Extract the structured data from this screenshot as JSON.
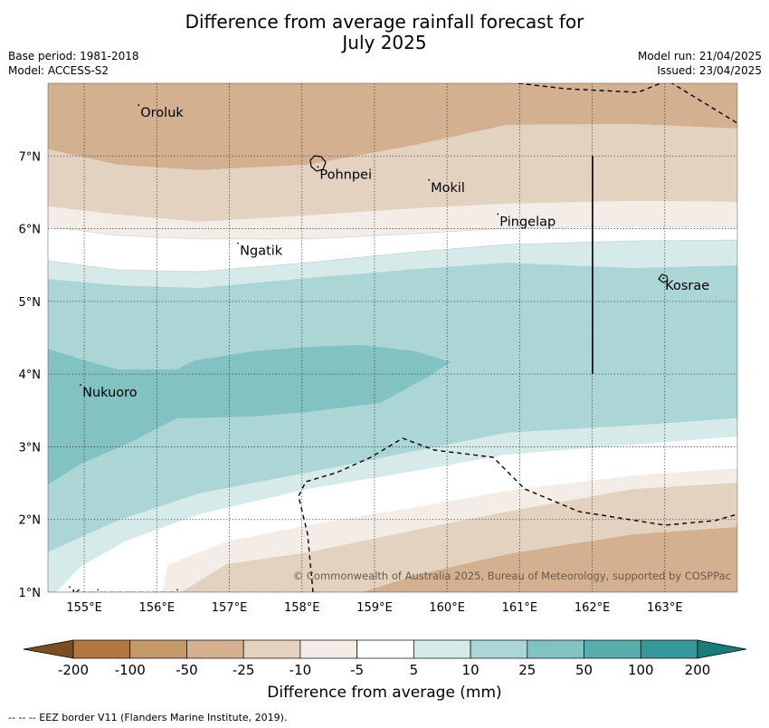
{
  "title_line1": "Difference from average rainfall forecast for",
  "title_line2": "July 2025",
  "meta_left": {
    "base_period": "Base period: 1981-2018",
    "model": "Model: ACCESS-S2"
  },
  "meta_right": {
    "model_run": "Model run: 21/04/2025",
    "issued": "Issued: 23/04/2025"
  },
  "axes": {
    "x_ticks": [
      "155°E",
      "156°E",
      "157°E",
      "158°E",
      "159°E",
      "160°E",
      "161°E",
      "162°E",
      "163°E"
    ],
    "y_ticks": [
      "1°N",
      "2°N",
      "3°N",
      "4°N",
      "5°N",
      "6°N",
      "7°N"
    ],
    "lon_range": [
      154.5,
      164.0
    ],
    "lat_range": [
      1.0,
      8.0
    ],
    "grid": true
  },
  "places": [
    {
      "name": "Oroluk",
      "lon": 155.75,
      "lat": 7.7
    },
    {
      "name": "Pohnpei",
      "lon": 158.22,
      "lat": 6.85
    },
    {
      "name": "Mokil",
      "lon": 159.75,
      "lat": 6.67
    },
    {
      "name": "Pingelap",
      "lon": 160.7,
      "lat": 6.2
    },
    {
      "name": "Ngatik",
      "lon": 157.12,
      "lat": 5.8
    },
    {
      "name": "Kosrae",
      "lon": 162.98,
      "lat": 5.32
    },
    {
      "name": "Nukuoro",
      "lon": 154.95,
      "lat": 3.85
    },
    {
      "name": "Kapingamarangi",
      "lon": 154.8,
      "lat": 1.07
    }
  ],
  "copyright": "© Commonwealth of Australia 2025, Bureau of Meteorology, supported by COSPPac",
  "colorbar": {
    "title": "Difference from average (mm)",
    "tick_labels": [
      "-200",
      "-100",
      "-50",
      "-25",
      "-10",
      "-5",
      "5",
      "10",
      "25",
      "50",
      "100",
      "200"
    ],
    "colors": [
      "#7c4d1f",
      "#b07840",
      "#c49868",
      "#d3b08f",
      "#e4d2c0",
      "#f4ede7",
      "#ffffff",
      "#d6eaea",
      "#acd6d6",
      "#83c2c2",
      "#59adad",
      "#339999",
      "#1b7a7a"
    ]
  },
  "footnote": "--  --  -- EEZ border V11 (Flanders Marine Institute, 2019)."
}
